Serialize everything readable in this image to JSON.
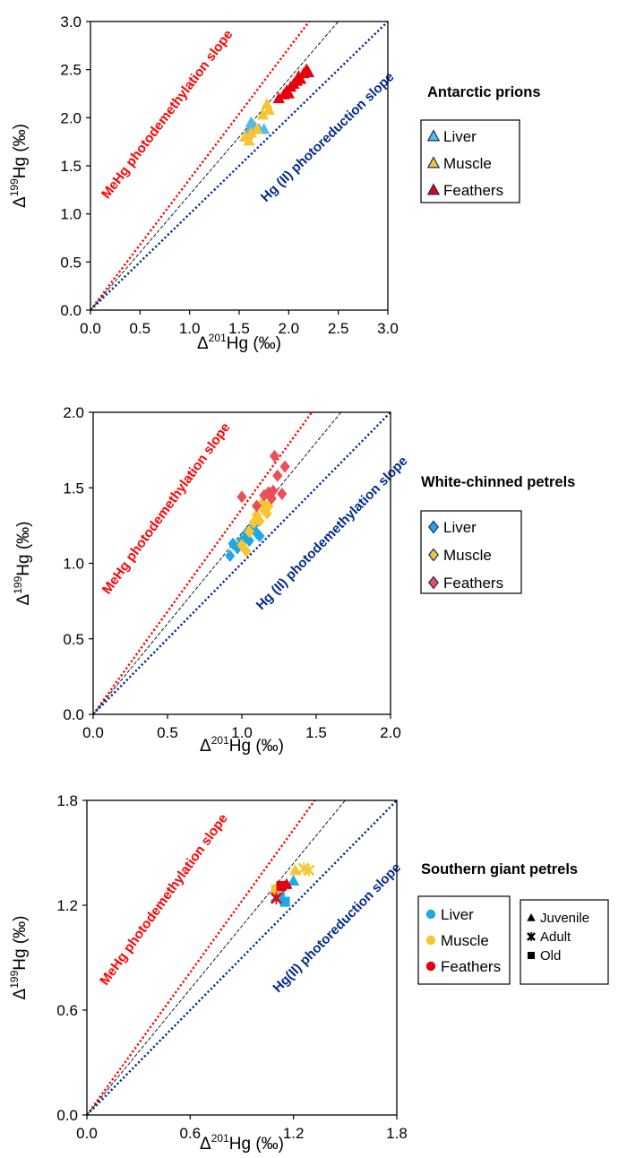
{
  "chart_data": [
    {
      "type": "scatter",
      "title": "Antarctic prions",
      "xlabel": "Δ²⁰¹Hg (‰)",
      "ylabel": "Δ¹⁹⁹Hg (‰)",
      "xlim": [
        0,
        3.0
      ],
      "ylim": [
        0,
        3.0
      ],
      "xticks": [
        "0.0",
        "0.5",
        "1.0",
        "1.5",
        "2.0",
        "2.5",
        "3.0"
      ],
      "yticks": [
        "0.0",
        "0.5",
        "1.0",
        "1.5",
        "2.0",
        "2.5",
        "3.0"
      ],
      "grid": false,
      "legend_position": "right",
      "marker": "triangle",
      "reference_lines": [
        {
          "label": "MeHg photodemethylation slope",
          "slope": 1.36,
          "color": "#ff0000",
          "style": "dotted"
        },
        {
          "label": "",
          "slope": 1.2,
          "color": "#000000",
          "style": "dashed"
        },
        {
          "label": "Hg (II) photoreduction slope",
          "slope": 1.0,
          "color": "#002c8c",
          "style": "dotted"
        }
      ],
      "series": [
        {
          "name": "Liver",
          "color": "#56b9e6",
          "points": [
            [
              1.58,
              1.82
            ],
            [
              1.62,
              1.95
            ],
            [
              1.66,
              1.9
            ],
            [
              1.7,
              1.88
            ],
            [
              1.75,
              1.88
            ],
            [
              1.6,
              1.86
            ],
            [
              1.64,
              1.92
            ]
          ]
        },
        {
          "name": "Muscle",
          "color": "#f6c531",
          "points": [
            [
              1.56,
              1.8
            ],
            [
              1.6,
              1.76
            ],
            [
              1.62,
              1.84
            ],
            [
              1.68,
              1.88
            ],
            [
              1.74,
              2.03
            ],
            [
              1.78,
              2.14
            ],
            [
              1.8,
              2.08
            ]
          ]
        },
        {
          "name": "Feathers",
          "color": "#e4000d",
          "points": [
            [
              1.9,
              2.2
            ],
            [
              1.95,
              2.24
            ],
            [
              1.98,
              2.28
            ],
            [
              2.0,
              2.25
            ],
            [
              2.02,
              2.32
            ],
            [
              2.05,
              2.35
            ],
            [
              2.08,
              2.38
            ],
            [
              2.1,
              2.43
            ],
            [
              2.12,
              2.4
            ],
            [
              2.15,
              2.46
            ],
            [
              2.18,
              2.5
            ],
            [
              2.2,
              2.47
            ]
          ]
        }
      ]
    },
    {
      "type": "scatter",
      "title": "White-chinned petrels",
      "xlabel": "Δ²⁰¹Hg (‰)",
      "ylabel": "Δ¹⁹⁹Hg (‰)",
      "xlim": [
        0,
        2.0
      ],
      "ylim": [
        0,
        2.0
      ],
      "xticks": [
        "0.0",
        "0.5",
        "1.0",
        "1.5",
        "2.0"
      ],
      "yticks": [
        "0.0",
        "0.5",
        "1.0",
        "1.5",
        "2.0"
      ],
      "grid": false,
      "legend_position": "right",
      "marker": "diamond",
      "reference_lines": [
        {
          "label": "MeHg photodemethylation slope",
          "slope": 1.36,
          "color": "#ff0000",
          "style": "dotted"
        },
        {
          "label": "",
          "slope": 1.2,
          "color": "#000000",
          "style": "dashed"
        },
        {
          "label": "Hg (II) photodemethylation slope",
          "slope": 1.0,
          "color": "#002c8c",
          "style": "dotted"
        }
      ],
      "series": [
        {
          "name": "Liver",
          "color": "#1ea8e6",
          "points": [
            [
              0.92,
              1.05
            ],
            [
              0.94,
              1.13
            ],
            [
              0.97,
              1.1
            ],
            [
              1.0,
              1.15
            ],
            [
              1.03,
              1.17
            ],
            [
              1.05,
              1.15
            ],
            [
              1.06,
              1.22
            ],
            [
              1.08,
              1.25
            ],
            [
              1.1,
              1.2
            ],
            [
              1.12,
              1.18
            ],
            [
              1.03,
              1.2
            ]
          ]
        },
        {
          "name": "Muscle",
          "color": "#f6c531",
          "points": [
            [
              1.0,
              1.12
            ],
            [
              1.03,
              1.08
            ],
            [
              1.05,
              1.21
            ],
            [
              1.08,
              1.27
            ],
            [
              1.1,
              1.32
            ],
            [
              1.12,
              1.28
            ],
            [
              1.15,
              1.35
            ],
            [
              1.17,
              1.33
            ],
            [
              1.18,
              1.38
            ],
            [
              1.14,
              1.4
            ]
          ]
        },
        {
          "name": "Feathers",
          "color": "#ea4f56",
          "points": [
            [
              1.0,
              1.44
            ],
            [
              1.1,
              1.38
            ],
            [
              1.15,
              1.45
            ],
            [
              1.18,
              1.47
            ],
            [
              1.2,
              1.43
            ],
            [
              1.21,
              1.48
            ],
            [
              1.22,
              1.71
            ],
            [
              1.24,
              1.58
            ],
            [
              1.27,
              1.46
            ],
            [
              1.29,
              1.64
            ]
          ]
        }
      ]
    },
    {
      "type": "scatter",
      "title": "Southern giant petrels",
      "xlabel": "Δ²⁰¹Hg (‰)",
      "ylabel": "Δ¹⁹⁹Hg (‰)",
      "xlim": [
        0,
        1.8
      ],
      "ylim": [
        0,
        1.8
      ],
      "xticks": [
        "0.0",
        "0.6",
        "1.2",
        "1.8"
      ],
      "yticks": [
        "0.0",
        "0.6",
        "1.2",
        "1.8"
      ],
      "grid": false,
      "legend_position": "right",
      "reference_lines": [
        {
          "label": "MeHg photodemethylation slope",
          "slope": 1.36,
          "color": "#ff0000",
          "style": "dotted"
        },
        {
          "label": "",
          "slope": 1.2,
          "color": "#000000",
          "style": "dashed"
        },
        {
          "label": "Hg(II) photoreduction slope",
          "slope": 1.0,
          "color": "#002c8c",
          "style": "dotted"
        }
      ],
      "series": [
        {
          "name": "Liver",
          "color": "#1ea8e6",
          "points": [
            [
              1.2,
              1.34,
              "triangle"
            ],
            [
              1.12,
              1.27,
              "square"
            ],
            [
              1.15,
              1.22,
              "square"
            ],
            [
              1.1,
              1.25,
              "cross"
            ]
          ]
        },
        {
          "name": "Muscle",
          "color": "#f6c531",
          "points": [
            [
              1.21,
              1.4,
              "triangle"
            ],
            [
              1.26,
              1.41,
              "cross"
            ],
            [
              1.29,
              1.4,
              "cross"
            ],
            [
              1.1,
              1.29,
              "square"
            ]
          ]
        },
        {
          "name": "Feathers",
          "color": "#e4000d",
          "points": [
            [
              1.1,
              1.24,
              "cross"
            ],
            [
              1.13,
              1.31,
              "square"
            ],
            [
              1.16,
              1.32,
              "triangle"
            ]
          ]
        }
      ],
      "age_legend": [
        {
          "label": "Juvenile",
          "marker": "triangle"
        },
        {
          "label": "Adult",
          "marker": "cross"
        },
        {
          "label": "Old",
          "marker": "square"
        }
      ]
    }
  ]
}
